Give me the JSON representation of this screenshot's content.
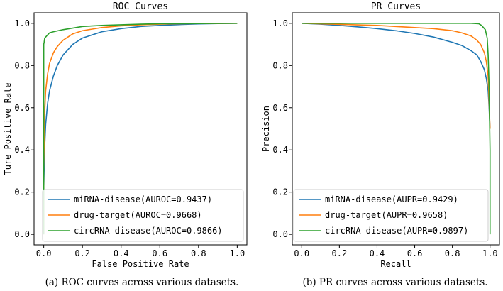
{
  "chart_data": [
    {
      "type": "line",
      "title": "ROC Curves",
      "xlabel": "False Positive Rate",
      "ylabel": "Ture Positive Rate",
      "xlim": [
        0.0,
        1.0
      ],
      "ylim": [
        0.0,
        1.0
      ],
      "xticks": [
        "0.0",
        "0.2",
        "0.4",
        "0.6",
        "0.8",
        "1.0"
      ],
      "yticks": [
        "0.0",
        "0.2",
        "0.4",
        "0.6",
        "0.8",
        "1.0"
      ],
      "grid": false,
      "legend_position": "lower-right",
      "caption": "(a)   ROC curves across various datasets.",
      "series": [
        {
          "name": "miRNA-disease(AUROC=0.9437)",
          "color": "#1f77b4",
          "x": [
            0.0,
            0.0,
            0.005,
            0.01,
            0.02,
            0.03,
            0.05,
            0.07,
            0.1,
            0.15,
            0.2,
            0.3,
            0.4,
            0.5,
            0.6,
            0.7,
            0.8,
            0.9,
            1.0
          ],
          "y": [
            0.0,
            0.22,
            0.42,
            0.52,
            0.62,
            0.68,
            0.75,
            0.8,
            0.85,
            0.9,
            0.93,
            0.96,
            0.975,
            0.985,
            0.99,
            0.994,
            0.997,
            0.999,
            1.0
          ]
        },
        {
          "name": "drug-target(AUROC=0.9668)",
          "color": "#ff7f0e",
          "x": [
            0.0,
            0.0,
            0.005,
            0.01,
            0.02,
            0.03,
            0.05,
            0.07,
            0.1,
            0.15,
            0.2,
            0.3,
            0.4,
            0.5,
            0.6,
            0.7,
            0.8,
            1.0
          ],
          "y": [
            0.0,
            0.3,
            0.58,
            0.68,
            0.76,
            0.81,
            0.86,
            0.89,
            0.92,
            0.95,
            0.965,
            0.98,
            0.988,
            0.993,
            0.996,
            0.998,
            0.999,
            1.0
          ]
        },
        {
          "name": "circRNA-disease(AUROC=0.9866)",
          "color": "#2ca02c",
          "x": [
            0.0,
            0.0,
            0.002,
            0.005,
            0.01,
            0.015,
            0.02,
            0.03,
            0.05,
            0.1,
            0.2,
            0.3,
            0.4,
            0.5,
            0.6,
            0.8,
            1.0
          ],
          "y": [
            0.0,
            0.9,
            0.91,
            0.93,
            0.935,
            0.94,
            0.945,
            0.955,
            0.96,
            0.97,
            0.985,
            0.99,
            0.993,
            0.996,
            0.998,
            0.999,
            1.0
          ]
        }
      ]
    },
    {
      "type": "line",
      "title": "PR Curves",
      "xlabel": "Recall",
      "ylabel": "Precision",
      "xlim": [
        0.0,
        1.0
      ],
      "ylim": [
        0.0,
        1.0
      ],
      "xticks": [
        "0.0",
        "0.2",
        "0.4",
        "0.6",
        "0.8",
        "1.0"
      ],
      "yticks": [
        "0.0",
        "0.2",
        "0.4",
        "0.6",
        "0.8",
        "1.0"
      ],
      "grid": false,
      "legend_position": "lower-left",
      "caption": "(b) PR curves across various datasets.",
      "series": [
        {
          "name": "miRNA-disease(AUPR=0.9429)",
          "color": "#1f77b4",
          "x": [
            0.0,
            0.1,
            0.2,
            0.3,
            0.4,
            0.5,
            0.6,
            0.7,
            0.8,
            0.85,
            0.9,
            0.93,
            0.95,
            0.97,
            0.98,
            0.99,
            0.995,
            1.0
          ],
          "y": [
            1.0,
            0.996,
            0.99,
            0.983,
            0.975,
            0.965,
            0.952,
            0.935,
            0.91,
            0.895,
            0.87,
            0.85,
            0.82,
            0.78,
            0.74,
            0.68,
            0.6,
            0.5
          ]
        },
        {
          "name": "drug-target(AUPR=0.9658)",
          "color": "#ff7f0e",
          "x": [
            0.0,
            0.2,
            0.4,
            0.6,
            0.7,
            0.8,
            0.85,
            0.9,
            0.93,
            0.95,
            0.97,
            0.98,
            0.99,
            1.0
          ],
          "y": [
            1.0,
            0.995,
            0.99,
            0.98,
            0.975,
            0.965,
            0.955,
            0.94,
            0.92,
            0.9,
            0.86,
            0.82,
            0.75,
            0.5
          ]
        },
        {
          "name": "circRNA-disease(AUPR=0.9897)",
          "color": "#2ca02c",
          "x": [
            0.0,
            0.2,
            0.4,
            0.6,
            0.8,
            0.9,
            0.94,
            0.955,
            0.965,
            0.975,
            0.985,
            0.99,
            0.995,
            1.0,
            1.0
          ],
          "y": [
            1.0,
            1.0,
            1.0,
            1.0,
            1.0,
            1.0,
            0.998,
            0.99,
            0.98,
            0.97,
            0.93,
            0.85,
            0.7,
            0.4,
            0.0
          ]
        }
      ]
    }
  ]
}
